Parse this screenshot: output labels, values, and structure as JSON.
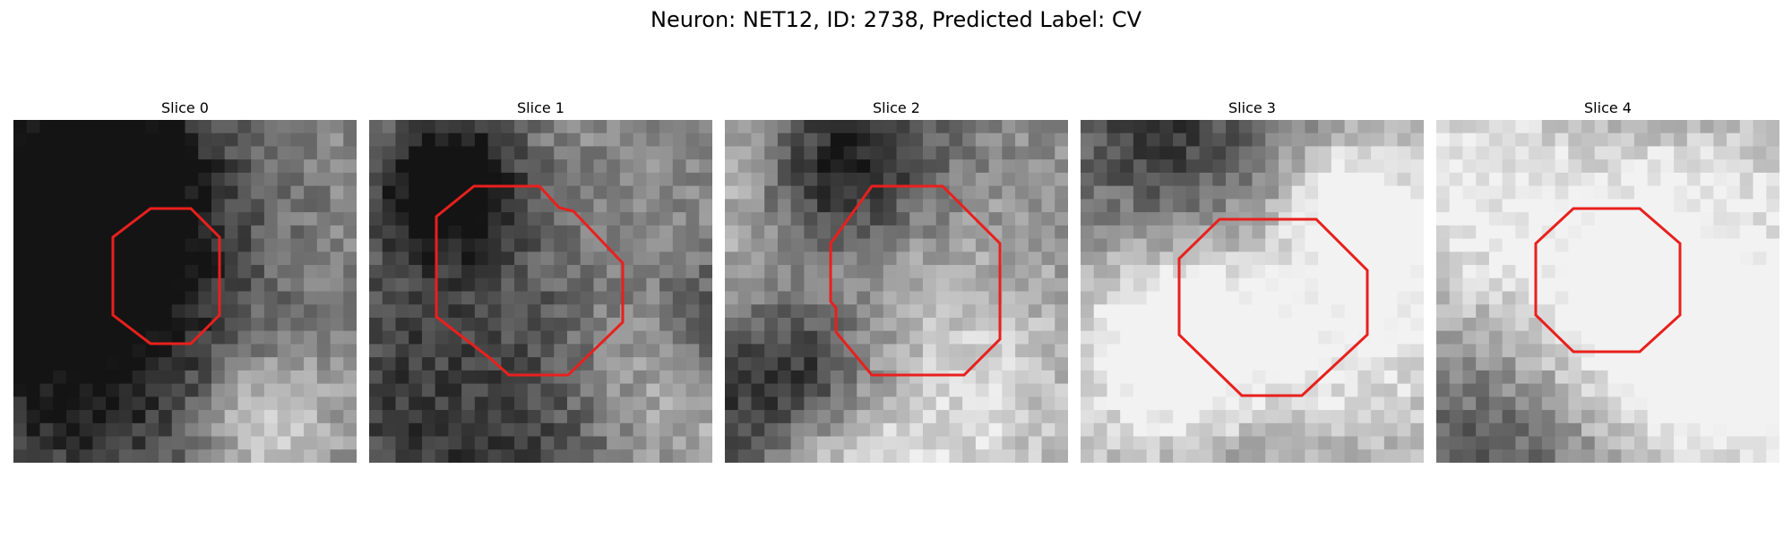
{
  "figure": {
    "title": "Neuron: NET12, ID: 2738, Predicted Label: CV"
  },
  "panels": [
    {
      "title": "Slice 0"
    },
    {
      "title": "Slice 1"
    },
    {
      "title": "Slice 2"
    },
    {
      "title": "Slice 3"
    },
    {
      "title": "Slice 4"
    }
  ],
  "colors": {
    "outline": "#e8201d",
    "image_dark": "#1c1c1c",
    "image_light": "#ececec"
  }
}
